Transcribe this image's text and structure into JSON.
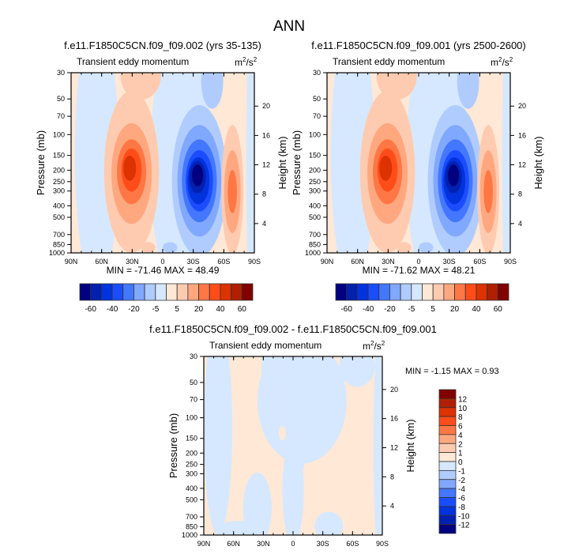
{
  "main_title": "ANN",
  "colors": {
    "palette": [
      "#000080",
      "#0020b0",
      "#0033dd",
      "#1a4dff",
      "#4477ff",
      "#80a8ff",
      "#b0ccff",
      "#d6e8ff",
      "#ffe8d6",
      "#ffcbb0",
      "#ffa880",
      "#ff7744",
      "#ff4d1a",
      "#dd3300",
      "#b02000",
      "#800000"
    ]
  },
  "chart_data": [
    {
      "type": "contour",
      "title": "f.e11.F1850C5CN.f09_f09.002 (yrs 35-135)",
      "subtitle": "Transient eddy momentum",
      "units": "m²/s²",
      "units_base": "m",
      "units_sup1": "2",
      "units_mid": "/s",
      "units_sup2": "2",
      "xlabel_ticks": [
        "90N",
        "60N",
        "30N",
        "0",
        "30S",
        "60S",
        "90S"
      ],
      "ylabel": "Pressure (mb)",
      "yticks": [
        "30",
        "50",
        "70",
        "100",
        "150",
        "200",
        "250",
        "300",
        "400",
        "500",
        "700",
        "850",
        "1000"
      ],
      "y_scale": "log",
      "ylim": [
        1000,
        30
      ],
      "right_label": "Height (km)",
      "right_ticks": [
        "20",
        "16",
        "12",
        "8",
        "4"
      ],
      "stats": "MIN = -71.46  MAX =  48.49",
      "colorbar_levels": [
        -60,
        -50,
        -40,
        -30,
        -20,
        -10,
        -5,
        0,
        5,
        10,
        20,
        30,
        40,
        50,
        60
      ],
      "colorbar_labels": [
        "-60",
        "-40",
        "-20",
        "-5",
        "5",
        "20",
        "40",
        "60"
      ]
    },
    {
      "type": "contour",
      "title": "f.e11.F1850C5CN.f09_f09.001 (yrs 2500-2600)",
      "subtitle": "Transient eddy momentum",
      "units_base": "m",
      "units_sup1": "2",
      "units_mid": "/s",
      "units_sup2": "2",
      "xlabel_ticks": [
        "90N",
        "60N",
        "30N",
        "0",
        "30S",
        "60S",
        "90S"
      ],
      "ylabel": "Pressure (mb)",
      "yticks": [
        "30",
        "50",
        "70",
        "100",
        "150",
        "200",
        "250",
        "300",
        "400",
        "500",
        "700",
        "850",
        "1000"
      ],
      "y_scale": "log",
      "ylim": [
        1000,
        30
      ],
      "right_label": "Height (km)",
      "right_ticks": [
        "20",
        "16",
        "12",
        "8",
        "4"
      ],
      "stats": "MIN = -71.62  MAX =  48.21",
      "colorbar_levels": [
        -60,
        -50,
        -40,
        -30,
        -20,
        -10,
        -5,
        0,
        5,
        10,
        20,
        30,
        40,
        50,
        60
      ],
      "colorbar_labels": [
        "-60",
        "-40",
        "-20",
        "-5",
        "5",
        "20",
        "40",
        "60"
      ]
    },
    {
      "type": "contour",
      "title": "f.e11.F1850C5CN.f09_f09.002 - f.e11.F1850C5CN.f09_f09.001",
      "subtitle": "Transient eddy momentum",
      "units_base": "m",
      "units_sup1": "2",
      "units_mid": "/s",
      "units_sup2": "2",
      "xlabel_ticks": [
        "90N",
        "60N",
        "30N",
        "0",
        "30S",
        "60S",
        "90S"
      ],
      "ylabel": "Pressure (mb)",
      "yticks": [
        "30",
        "50",
        "70",
        "100",
        "150",
        "200",
        "250",
        "300",
        "400",
        "500",
        "700",
        "850",
        "1000"
      ],
      "y_scale": "log",
      "ylim": [
        1000,
        30
      ],
      "right_label": "Height (km)",
      "right_ticks": [
        "20",
        "16",
        "12",
        "8",
        "4"
      ],
      "stats": "MIN =  -1.15  MAX =   0.93",
      "colorbar_levels": [
        12,
        10,
        8,
        6,
        4,
        2,
        1,
        0,
        -1,
        -2,
        -4,
        -6,
        -8,
        -10,
        -12
      ],
      "colorbar_labels": [
        "12",
        "10",
        "8",
        "6",
        "4",
        "2",
        "1",
        "0",
        "-1",
        "-2",
        "-4",
        "-6",
        "-8",
        "-10",
        "-12"
      ]
    }
  ]
}
